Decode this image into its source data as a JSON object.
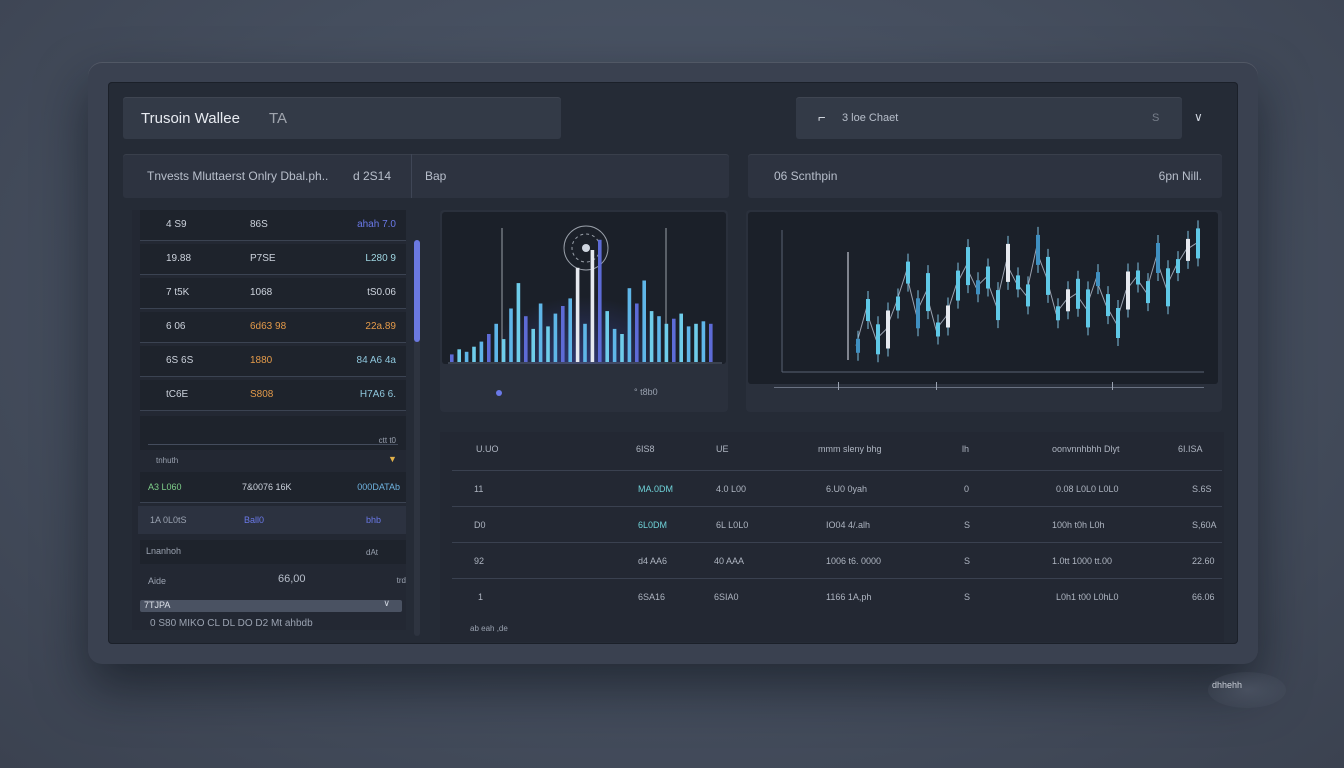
{
  "header": {
    "app_title": "Trusoin Wallee",
    "app_title_badge": "TA",
    "right_label": "3 loe Chaet",
    "right_value": "S",
    "chevron": "chevron-down-icon"
  },
  "subheader": {
    "left_text": "Tnvests Mluttaerst Onlry Dbal.ph..",
    "left_value": "d 2S14",
    "mid_text": "Bap",
    "right_text": "06 Scnthpin",
    "right_value": "6pn Nill."
  },
  "left_list": {
    "rows": [
      {
        "a": "4 S9",
        "b": "86S",
        "c": "ahah 7.0"
      },
      {
        "a": "19.88",
        "b": "P7SE",
        "c": "L280 9"
      },
      {
        "a": "7 t5K",
        "b": "1068",
        "c": "tS0.06"
      },
      {
        "a": "6 06",
        "b": "6d63 98",
        "c": "22a.89"
      },
      {
        "a": "6S 6S",
        "b": "1880",
        "c": "84 A6 4a"
      },
      {
        "a": "tC6E",
        "b": "S808",
        "c": "H7A6 6."
      }
    ],
    "mini_chart_label": "tnhuth",
    "mini_chart_value": "ctt t0",
    "summary_left": "A3 L060",
    "summary_mid": "7&0076 16K",
    "summary_right": "000DATAb",
    "row2_left": "1A 0L0tS",
    "row2_mid": "Ball0",
    "row2_right": "bhb",
    "row3_left": "Lnanhoh",
    "row3_right": "dAt",
    "row4_left": "Aide",
    "row4_mid": "66,00",
    "row4_right": "trd",
    "row5_left": "7TJPA",
    "row6_text": "0 S80 MIKO CL DL DO D2 Mt ahbdb"
  },
  "chart_left": {
    "legend_a": "o",
    "legend_b": "° t8b0"
  },
  "chart_data": [
    {
      "type": "bar",
      "values": [
        6,
        10,
        8,
        12,
        16,
        22,
        30,
        18,
        42,
        62,
        36,
        26,
        46,
        28,
        38,
        44,
        50,
        74,
        30,
        88,
        96,
        40,
        26,
        22,
        58,
        46,
        64,
        40,
        36,
        30,
        34,
        38,
        28,
        30,
        32,
        30
      ],
      "ylim": [
        0,
        110
      ],
      "title": "",
      "xlabel": "",
      "ylabel": ""
    },
    {
      "type": "line",
      "values": [
        20,
        64,
        28,
        40,
        72,
        110,
        60,
        86,
        40,
        56,
        94,
        118,
        92,
        104,
        70,
        122,
        98,
        82,
        138,
        106,
        60,
        76,
        84,
        66,
        102,
        70,
        48,
        88,
        104,
        86,
        128,
        92,
        118,
        138,
        146
      ],
      "ylim": [
        0,
        160
      ],
      "title": "",
      "xlabel": "",
      "ylabel": ""
    }
  ],
  "table": {
    "headers": [
      "U.UO",
      "6IS8",
      "UE",
      "mmm sleny bhg",
      "lh",
      "oonvnnhbhh Dlyt",
      "6I.ISA"
    ],
    "rows": [
      {
        "c1": "11",
        "c2": "MA.0DM",
        "c3": "4.0 L00",
        "c4": "6.U0 0yah",
        "c5": "0",
        "c6": "0.08 L0L0 L0L0",
        "c7": "S.6S"
      },
      {
        "c1": "D0",
        "c2": "6L0DM",
        "c3": "6L L0L0",
        "c4": "IO04 4/.alh",
        "c5": "S",
        "c6": "100h t0h L0h",
        "c7": "S,60A"
      },
      {
        "c1": "92",
        "c2": "d4 AA6",
        "c3": "40 AAA",
        "c4": "1006 t6. 0000",
        "c5": "S",
        "c6": "1.0tt 1000 tt.00",
        "c7": "22.60"
      },
      {
        "c1": "1",
        "c2": "6SA16",
        "c3": "6SIA0",
        "c4": "1166 1A,ph",
        "c5": "S",
        "c6": "L0h1 t00 L0hL0",
        "c7": "66.06"
      }
    ],
    "footer": "ab  eah  ,de"
  },
  "corner_logo_text": "dhhehh"
}
